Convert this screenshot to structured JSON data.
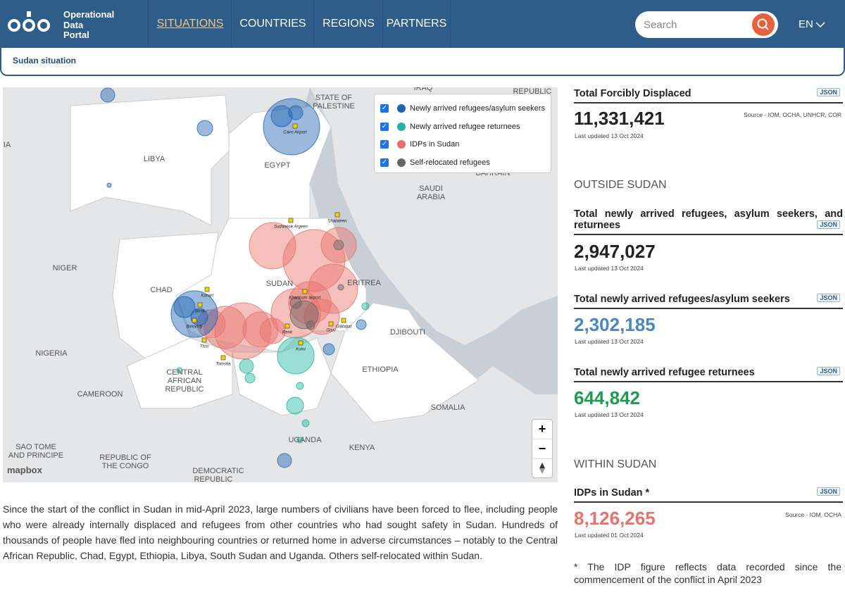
{
  "header": {
    "logo_lines": [
      "Operational",
      "Data",
      "Portal"
    ],
    "nav": [
      "SITUATIONS",
      "COUNTRIES",
      "REGIONS",
      "PARTNERS"
    ],
    "search_placeholder": "Search",
    "language": "EN"
  },
  "breadcrumb": "Sudan situation",
  "map": {
    "legend": [
      {
        "label": "Newly arrived refugees/asylum seekers",
        "color": "#1e64b4"
      },
      {
        "label": "Newly arrived refugee returnees",
        "color": "#1fb5a0"
      },
      {
        "label": "IDPs in Sudan",
        "color": "#e8706a"
      },
      {
        "label": "Self-relocated refugees",
        "color": "#666666"
      }
    ],
    "country_labels": [
      "LIBYA",
      "EGYPT",
      "STATE OF",
      "PALESTINE",
      "IRAQ",
      "REPUBLIC",
      "SAUDI",
      "ARABIA",
      "BAHRAIN",
      "NIGER",
      "CHAD",
      "SUDAN",
      "ERITREA",
      "DJIBOUTI",
      "NIGERIA",
      "CAMEROON",
      "CENTRAL",
      "AFRICAN",
      "REPUBLIC",
      "ETHIOPIA",
      "SOMALIA",
      "SAO TOME",
      "AND PRINCIPE",
      "REPUBLIC OF",
      "THE CONGO",
      "DEMOCRATIC",
      "REPUBLIC",
      "UGANDA",
      "KENYA",
      "IA"
    ],
    "place_labels": [
      "Cairo Airport",
      "Sudanese Argeen",
      "Shalateen",
      "Khartoum airport",
      "Gallabat",
      "Kariari",
      "Birak",
      "Birkandji",
      "Tissi",
      "Kuku",
      "Renk",
      "Gissi",
      "Tomsha"
    ],
    "attribution": "mapbox",
    "zoom_in": "+",
    "zoom_out": "−"
  },
  "description": "Since the start of the conflict in Sudan in mid-April 2023, large numbers of civilians have been forced to flee, including people who were already internally displaced and refugees from other countries who had sought safety in Sudan. Hundreds of thousands of people have fled into neighbouring countries or returned home in adverse circumstances – notably to the Central African Republic, Chad, Egypt, Ethiopia, Libya, South Sudan and Uganda. Others self-relocated within Sudan.",
  "stats": {
    "total": {
      "title": "Total Forcibly Displaced",
      "badge": "JSON",
      "value": "11,331,421",
      "source": "Source - IOM, OCHA, UNHCR, COR",
      "updated": "Last updated 13 Oct 2024"
    },
    "outside_heading": "OUTSIDE SUDAN",
    "outside": [
      {
        "title": "Total newly arrived refugees, asylum seekers, and returnees",
        "badge": "JSON",
        "value": "2,947,027",
        "updated": "Last updated 13 Oct 2024"
      },
      {
        "title": "Total newly arrived refugees/asylum seekers",
        "badge": "JSON",
        "value": "2,302,185",
        "updated": "Last updated 13 Oct 2024"
      },
      {
        "title": "Total newly arrived refugee returnees",
        "badge": "JSON",
        "value": "644,842",
        "updated": "Last updated 13 Oct 2024"
      }
    ],
    "within_heading": "WITHIN SUDAN",
    "within": {
      "title": "IDPs in Sudan *",
      "badge": "JSON",
      "value": "8,126,265",
      "source": "Source - IOM, OCHA",
      "updated": "Last updated 01 Oct 2024"
    },
    "footnote": "* The IDP figure reflects data recorded since the commencement of the conflict in April 2023"
  }
}
